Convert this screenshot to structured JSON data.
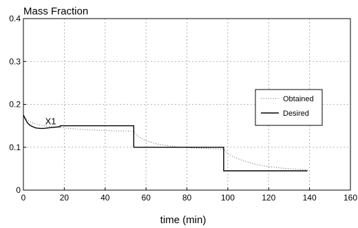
{
  "chart_data": {
    "type": "line",
    "title": "Mass Fraction",
    "xlabel": "time (min)",
    "ylabel": "",
    "xlim": [
      0,
      160
    ],
    "ylim": [
      0,
      0.4
    ],
    "x_ticks": [
      0,
      20,
      40,
      60,
      80,
      100,
      120,
      140,
      160
    ],
    "y_ticks": [
      0,
      0.1,
      0.2,
      0.3,
      0.4
    ],
    "x_tick_labels": [
      "0",
      "20",
      "40",
      "60",
      "80",
      "100",
      "120",
      "140",
      "160"
    ],
    "y_tick_labels": [
      "0",
      "0.1",
      "0.2",
      "0.3",
      "0.4"
    ],
    "grid": true,
    "legend_position": "right",
    "annotation": {
      "text": "X1",
      "x": 13,
      "y": 0.16
    },
    "series": [
      {
        "name": "Obtained",
        "style": "dotted",
        "x": [
          0,
          1,
          2,
          3,
          5,
          7,
          10,
          14,
          18,
          20,
          25,
          30,
          35,
          40,
          45,
          50,
          54,
          55,
          57,
          60,
          65,
          70,
          75,
          80,
          85,
          90,
          95,
          98,
          99,
          101,
          104,
          108,
          112,
          116,
          120,
          125,
          130,
          135,
          139
        ],
        "y": [
          0.175,
          0.168,
          0.163,
          0.16,
          0.156,
          0.153,
          0.15,
          0.148,
          0.146,
          0.145,
          0.143,
          0.141,
          0.14,
          0.139,
          0.138,
          0.138,
          0.137,
          0.13,
          0.123,
          0.115,
          0.108,
          0.104,
          0.101,
          0.099,
          0.098,
          0.097,
          0.096,
          0.096,
          0.09,
          0.082,
          0.075,
          0.068,
          0.062,
          0.058,
          0.055,
          0.052,
          0.05,
          0.048,
          0.047
        ]
      },
      {
        "name": "Desired",
        "style": "solid",
        "x": [
          0,
          1,
          2,
          3,
          4,
          5,
          6,
          8,
          10,
          12,
          14,
          16,
          18,
          18,
          54,
          54,
          98,
          98,
          139
        ],
        "y": [
          0.175,
          0.165,
          0.157,
          0.152,
          0.149,
          0.147,
          0.145,
          0.144,
          0.144,
          0.145,
          0.146,
          0.147,
          0.148,
          0.15,
          0.15,
          0.1,
          0.1,
          0.045,
          0.045
        ]
      }
    ]
  }
}
